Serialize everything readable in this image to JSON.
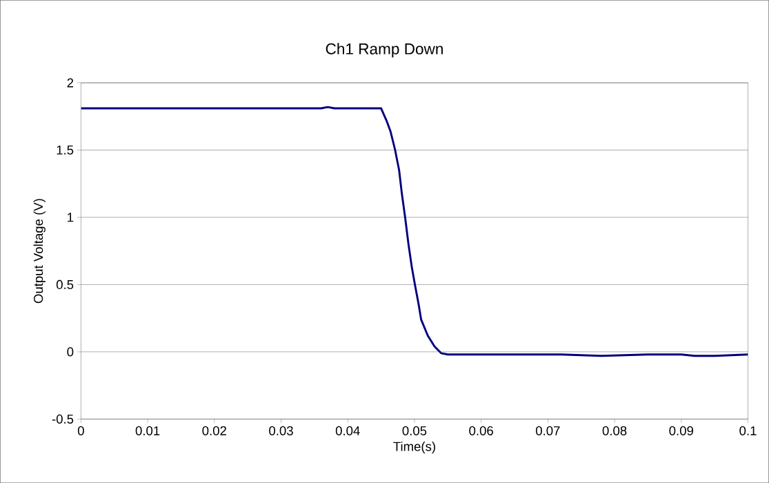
{
  "chart_data": {
    "type": "line",
    "title": "Ch1 Ramp Down",
    "xlabel": "Time(s)",
    "ylabel": "Output Voltage (V)",
    "x": [
      0,
      0.01,
      0.02,
      0.03,
      0.036,
      0.037,
      0.038,
      0.045,
      0.0458,
      0.0464,
      0.0471,
      0.0477,
      0.0481,
      0.0486,
      0.0491,
      0.0496,
      0.0501,
      0.0506,
      0.051,
      0.052,
      0.053,
      0.054,
      0.055,
      0.06,
      0.065,
      0.072,
      0.078,
      0.085,
      0.09,
      0.092,
      0.095,
      0.1
    ],
    "series": [
      {
        "color": "#000080",
        "values": [
          1.81,
          1.81,
          1.81,
          1.81,
          1.81,
          1.82,
          1.81,
          1.81,
          1.72,
          1.64,
          1.5,
          1.35,
          1.18,
          1.0,
          0.8,
          0.63,
          0.49,
          0.36,
          0.24,
          0.12,
          0.04,
          -0.01,
          -0.02,
          -0.02,
          -0.02,
          -0.02,
          -0.03,
          -0.02,
          -0.02,
          -0.03,
          -0.03,
          -0.02
        ]
      }
    ],
    "xlim": [
      0,
      0.1
    ],
    "ylim": [
      -0.5,
      2
    ],
    "xticks": [
      0,
      0.01,
      0.02,
      0.03,
      0.04,
      0.05,
      0.06,
      0.07,
      0.08,
      0.09,
      0.1
    ],
    "yticks": [
      -0.5,
      0,
      0.5,
      1,
      1.5,
      2
    ],
    "grid": "y",
    "marker": "none",
    "line_style": "solid"
  }
}
